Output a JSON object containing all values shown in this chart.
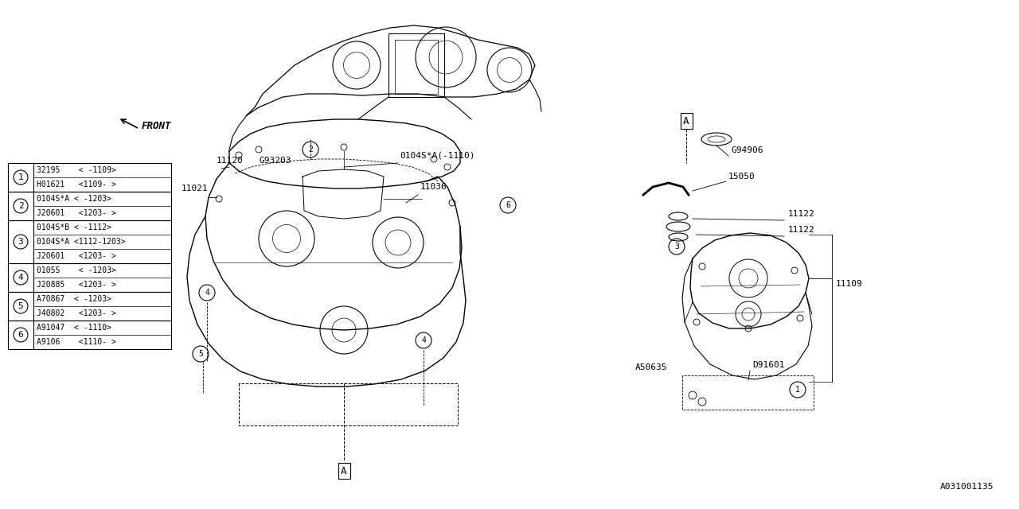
{
  "bg_color": "#ffffff",
  "line_color": "#000000",
  "diagram_number": "A031001135",
  "parts_table": [
    {
      "num": 1,
      "rows": [
        "32195    < -1109>",
        "H01621   <1109- >"
      ]
    },
    {
      "num": 2,
      "rows": [
        "0104S*A < -1203>",
        "J20601   <1203- >"
      ]
    },
    {
      "num": 3,
      "rows": [
        "0104S*B < -1112>",
        "0104S*A <1112-1203>",
        "J20601   <1203- >"
      ]
    },
    {
      "num": 4,
      "rows": [
        "0105S    < -1203>",
        "J20885   <1203- >"
      ]
    },
    {
      "num": 5,
      "rows": [
        "A70867  < -1203>",
        "J40802   <1203- >"
      ]
    },
    {
      "num": 6,
      "rows": [
        "A91047  < -1110>",
        "A9106    <1110- >"
      ]
    }
  ]
}
